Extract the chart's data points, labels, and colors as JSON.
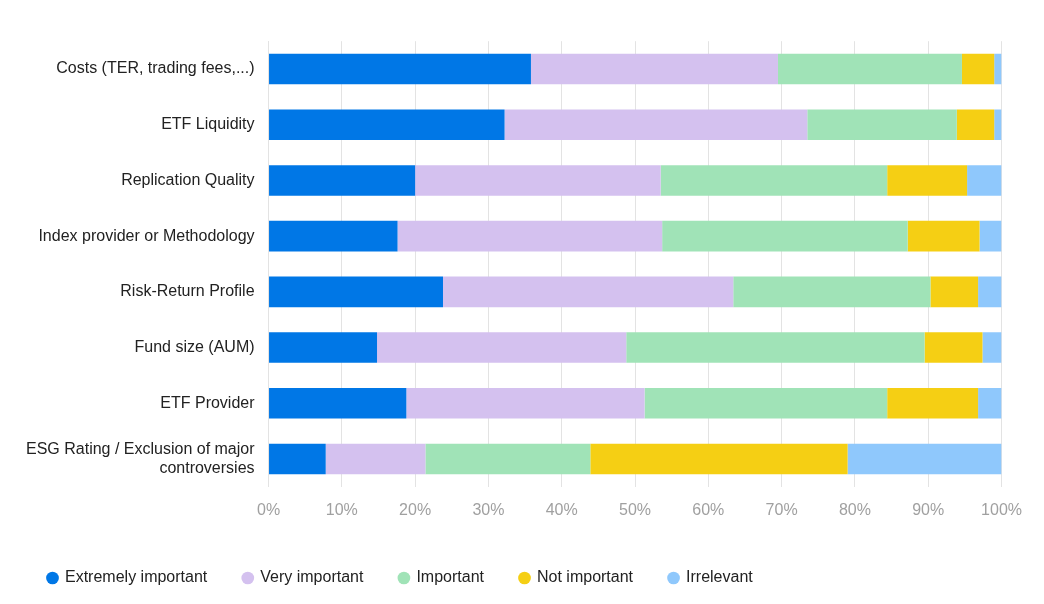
{
  "chart_data": {
    "type": "bar",
    "orientation": "horizontal",
    "stacked": true,
    "categories": [
      "Costs (TER, trading fees,...)",
      "ETF Liquidity",
      "Replication Quality",
      "Index provider or Methodology",
      "Risk-Return Profile",
      "Fund size (AUM)",
      "ETF Provider",
      "ESG Rating / Exclusion of major controversies"
    ],
    "series": [
      {
        "name": "Extremely important",
        "color": "#0077e6",
        "values": [
          35.8,
          32.2,
          20.0,
          17.6,
          23.8,
          14.8,
          18.8,
          7.8
        ]
      },
      {
        "name": "Very important",
        "color": "#d4c1ef",
        "values": [
          33.7,
          41.3,
          33.5,
          36.1,
          39.6,
          34.0,
          32.5,
          13.6
        ]
      },
      {
        "name": "Important",
        "color": "#a0e3b7",
        "values": [
          25.1,
          20.4,
          30.9,
          33.5,
          26.9,
          40.7,
          33.1,
          22.5
        ]
      },
      {
        "name": "Not important",
        "color": "#f5cf14",
        "values": [
          4.4,
          5.1,
          10.9,
          9.8,
          6.5,
          7.9,
          12.4,
          35.1
        ]
      },
      {
        "name": "Irrelevant",
        "color": "#8fc8fc",
        "values": [
          1.0,
          1.0,
          4.7,
          3.0,
          3.2,
          2.6,
          3.2,
          21.0
        ]
      }
    ],
    "xlim": [
      0,
      100
    ],
    "xticks": [
      {
        "value": 0,
        "label": "0%"
      },
      {
        "value": 10,
        "label": "10%"
      },
      {
        "value": 20,
        "label": "20%"
      },
      {
        "value": 30,
        "label": "30%"
      },
      {
        "value": 40,
        "label": "40%"
      },
      {
        "value": 50,
        "label": "50%"
      },
      {
        "value": 60,
        "label": "60%"
      },
      {
        "value": 70,
        "label": "70%"
      },
      {
        "value": 80,
        "label": "80%"
      },
      {
        "value": 90,
        "label": "90%"
      },
      {
        "value": 100,
        "label": "100%"
      }
    ],
    "grid": "x",
    "legend": "bottom"
  }
}
